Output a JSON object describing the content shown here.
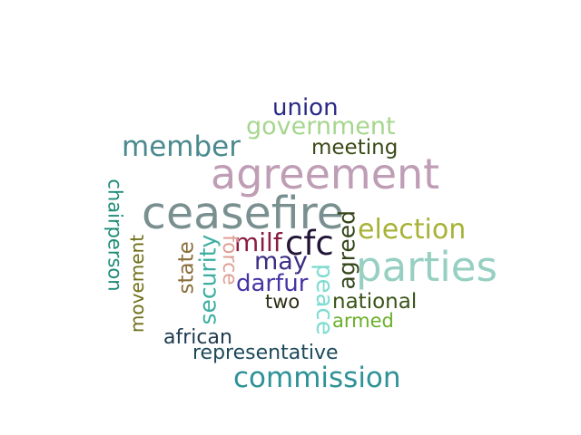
{
  "words": {
    "union": {
      "text": "union",
      "color": "#2a2a86"
    },
    "government": {
      "text": "government",
      "color": "#a6d68e"
    },
    "member": {
      "text": "member",
      "color": "#4a8a8e"
    },
    "meeting": {
      "text": "meeting",
      "color": "#3a4a18"
    },
    "agreement": {
      "text": "agreement",
      "color": "#bf9db5"
    },
    "ceasefire": {
      "text": "ceasefire",
      "color": "#7a9090"
    },
    "election": {
      "text": "election",
      "color": "#a8b236"
    },
    "parties": {
      "text": "parties",
      "color": "#97d0c2"
    },
    "cfc": {
      "text": "cfc",
      "color": "#221436"
    },
    "milf": {
      "text": "milf",
      "color": "#8a1c44"
    },
    "may": {
      "text": "may",
      "color": "#3c2c84"
    },
    "darfur": {
      "text": "darfur",
      "color": "#4534a4"
    },
    "two": {
      "text": "two",
      "color": "#2e2e14"
    },
    "national": {
      "text": "national",
      "color": "#3a5418"
    },
    "armed": {
      "text": "armed",
      "color": "#6ab028"
    },
    "african": {
      "text": "african",
      "color": "#1e3a4e"
    },
    "representative": {
      "text": "representative",
      "color": "#1c4a5a"
    },
    "commission": {
      "text": "commission",
      "color": "#2e9296"
    },
    "chairperson": {
      "text": "chairperson",
      "color": "#1e8c78"
    },
    "movement": {
      "text": "movement",
      "color": "#6e6e18"
    },
    "state": {
      "text": "state",
      "color": "#8c6e3c"
    },
    "security": {
      "text": "security",
      "color": "#3aaea0"
    },
    "force": {
      "text": "force",
      "color": "#e0a096"
    },
    "agreed": {
      "text": "agreed",
      "color": "#34461a"
    },
    "peace": {
      "text": "peace",
      "color": "#7edcd0"
    }
  }
}
